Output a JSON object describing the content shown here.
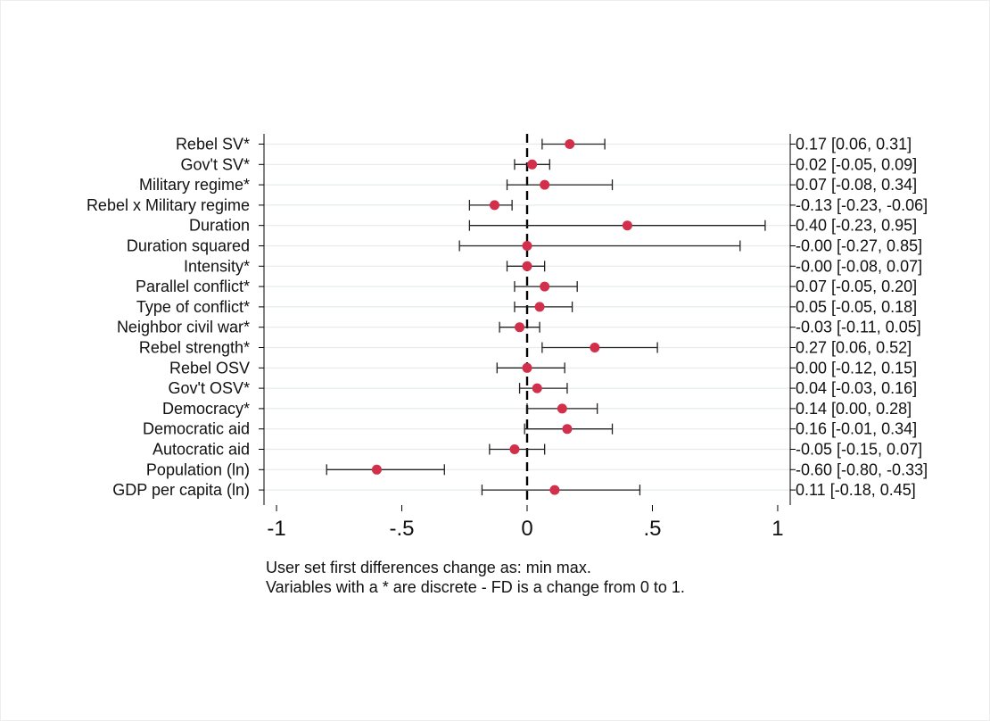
{
  "chart_data": {
    "type": "coefficient-plot",
    "marker_color": "#d12f4a",
    "grid_color": "#e4ecee",
    "xlim": [
      -1.05,
      1.05
    ],
    "xticks": [
      -1,
      -0.5,
      0,
      0.5,
      1
    ],
    "xtick_labels": [
      "-1",
      "-.5",
      "0",
      ".5",
      "1"
    ],
    "reference_line": 0,
    "rows": [
      {
        "label": "Rebel SV*",
        "estimate": 0.17,
        "lower": 0.06,
        "upper": 0.31,
        "text": "0.17 [0.06, 0.31]"
      },
      {
        "label": "Gov't SV*",
        "estimate": 0.02,
        "lower": -0.05,
        "upper": 0.09,
        "text": "0.02 [-0.05, 0.09]"
      },
      {
        "label": "Military regime*",
        "estimate": 0.07,
        "lower": -0.08,
        "upper": 0.34,
        "text": "0.07 [-0.08, 0.34]"
      },
      {
        "label": "Rebel x Military regime",
        "estimate": -0.13,
        "lower": -0.23,
        "upper": -0.06,
        "text": "-0.13 [-0.23, -0.06]"
      },
      {
        "label": "Duration",
        "estimate": 0.4,
        "lower": -0.23,
        "upper": 0.95,
        "text": "0.40 [-0.23, 0.95]"
      },
      {
        "label": "Duration squared",
        "estimate": 0.0,
        "lower": -0.27,
        "upper": 0.85,
        "text": "-0.00 [-0.27, 0.85]"
      },
      {
        "label": "Intensity*",
        "estimate": 0.0,
        "lower": -0.08,
        "upper": 0.07,
        "text": "-0.00 [-0.08, 0.07]"
      },
      {
        "label": "Parallel conflict*",
        "estimate": 0.07,
        "lower": -0.05,
        "upper": 0.2,
        "text": "0.07 [-0.05, 0.20]"
      },
      {
        "label": "Type of conflict*",
        "estimate": 0.05,
        "lower": -0.05,
        "upper": 0.18,
        "text": "0.05 [-0.05, 0.18]"
      },
      {
        "label": "Neighbor civil war*",
        "estimate": -0.03,
        "lower": -0.11,
        "upper": 0.05,
        "text": "-0.03 [-0.11, 0.05]"
      },
      {
        "label": "Rebel strength*",
        "estimate": 0.27,
        "lower": 0.06,
        "upper": 0.52,
        "text": "0.27 [0.06, 0.52]"
      },
      {
        "label": "Rebel OSV",
        "estimate": 0.0,
        "lower": -0.12,
        "upper": 0.15,
        "text": "0.00 [-0.12, 0.15]"
      },
      {
        "label": "Gov't OSV*",
        "estimate": 0.04,
        "lower": -0.03,
        "upper": 0.16,
        "text": "0.04 [-0.03, 0.16]"
      },
      {
        "label": "Democracy*",
        "estimate": 0.14,
        "lower": 0.0,
        "upper": 0.28,
        "text": "0.14 [0.00, 0.28]"
      },
      {
        "label": "Democratic aid",
        "estimate": 0.16,
        "lower": -0.01,
        "upper": 0.34,
        "text": "0.16 [-0.01, 0.34]"
      },
      {
        "label": "Autocratic aid",
        "estimate": -0.05,
        "lower": -0.15,
        "upper": 0.07,
        "text": "-0.05 [-0.15, 0.07]"
      },
      {
        "label": "Population (ln)",
        "estimate": -0.6,
        "lower": -0.8,
        "upper": -0.33,
        "text": "-0.60 [-0.80, -0.33]"
      },
      {
        "label": "GDP per capita (ln)",
        "estimate": 0.11,
        "lower": -0.18,
        "upper": 0.45,
        "text": "0.11 [-0.18, 0.45]"
      }
    ],
    "notes": [
      "User set first differences change as: min max.",
      "Variables with a * are discrete - FD is a change from 0 to 1."
    ]
  }
}
